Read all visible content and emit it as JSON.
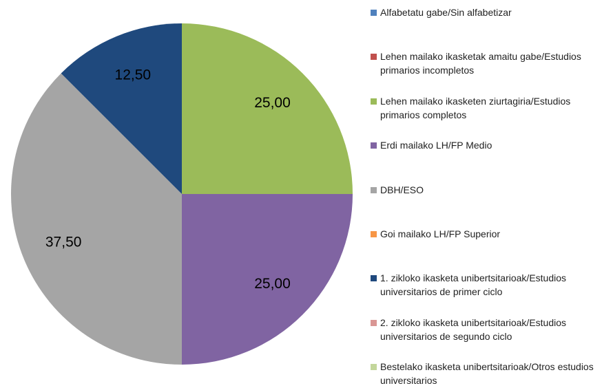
{
  "chart_data": {
    "type": "pie",
    "categories": [
      "Alfabetatu gabe/Sin alfabetizar",
      "Lehen mailako ikasketak amaitu gabe/Estudios primarios incompletos",
      "Lehen mailako ikasketen ziurtagiria/Estudios primarios completos",
      "Erdi mailako LH/FP Medio",
      "DBH/ESO",
      "Goi mailako LH/FP Superior",
      "1. zikloko ikasketa unibertsitarioak/Estudios universitarios de primer ciclo",
      "2. zikloko ikasketa unibertsitarioak/Estudios universitarios de segundo ciclo",
      "Bestelako ikasketa unibertsitarioak/Otros estudios universitarios"
    ],
    "values": [
      0,
      0,
      25,
      25,
      37.5,
      0,
      12.5,
      0,
      0
    ],
    "value_labels": [
      null,
      null,
      "25,00",
      "25,00",
      "37,50",
      null,
      "12,50",
      null,
      null
    ],
    "colors": [
      "#4f81bd",
      "#c0504d",
      "#9bbb59",
      "#8064a2",
      "#a5a5a5",
      "#f79646",
      "#1f497d",
      "#d99694",
      "#c3d69b"
    ],
    "legend": "right"
  }
}
